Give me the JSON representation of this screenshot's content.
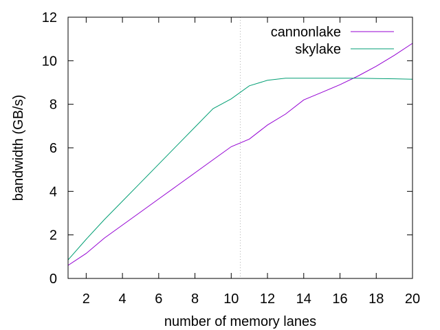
{
  "chart_data": {
    "type": "line",
    "title": "",
    "xlabel": "number of memory lanes",
    "ylabel": "bandwidth (GB/s)",
    "xlim": [
      1,
      20
    ],
    "ylim": [
      0,
      12
    ],
    "x_ticks": [
      2,
      4,
      6,
      8,
      10,
      12,
      14,
      16,
      18,
      20
    ],
    "y_ticks": [
      0,
      2,
      4,
      6,
      8,
      10,
      12
    ],
    "grid": false,
    "reference_line": {
      "x": 10.5,
      "style": "dotted"
    },
    "legend": {
      "placement": "top-right"
    },
    "series": [
      {
        "name": "cannonlake",
        "color": "#9400d3",
        "points": [
          [
            1,
            0.6
          ],
          [
            2,
            1.15
          ],
          [
            3,
            1.85
          ],
          [
            4,
            2.45
          ],
          [
            5,
            3.05
          ],
          [
            6,
            3.65
          ],
          [
            7,
            4.25
          ],
          [
            8,
            4.85
          ],
          [
            9,
            5.45
          ],
          [
            10,
            6.05
          ],
          [
            11,
            6.4
          ],
          [
            12,
            7.05
          ],
          [
            13,
            7.55
          ],
          [
            14,
            8.2
          ],
          [
            15,
            8.55
          ],
          [
            16,
            8.9
          ],
          [
            17,
            9.3
          ],
          [
            18,
            9.75
          ],
          [
            19,
            10.25
          ],
          [
            20,
            10.8
          ]
        ]
      },
      {
        "name": "skylake",
        "color": "#009e73",
        "points": [
          [
            1,
            0.85
          ],
          [
            2,
            1.8
          ],
          [
            3,
            2.7
          ],
          [
            4,
            3.55
          ],
          [
            5,
            4.4
          ],
          [
            6,
            5.25
          ],
          [
            7,
            6.1
          ],
          [
            8,
            6.95
          ],
          [
            9,
            7.8
          ],
          [
            10,
            8.25
          ],
          [
            11,
            8.85
          ],
          [
            12,
            9.1
          ],
          [
            13,
            9.2
          ],
          [
            14,
            9.2
          ],
          [
            15,
            9.2
          ],
          [
            16,
            9.2
          ],
          [
            17,
            9.2
          ],
          [
            18,
            9.18
          ],
          [
            19,
            9.17
          ],
          [
            20,
            9.15
          ]
        ]
      }
    ]
  }
}
